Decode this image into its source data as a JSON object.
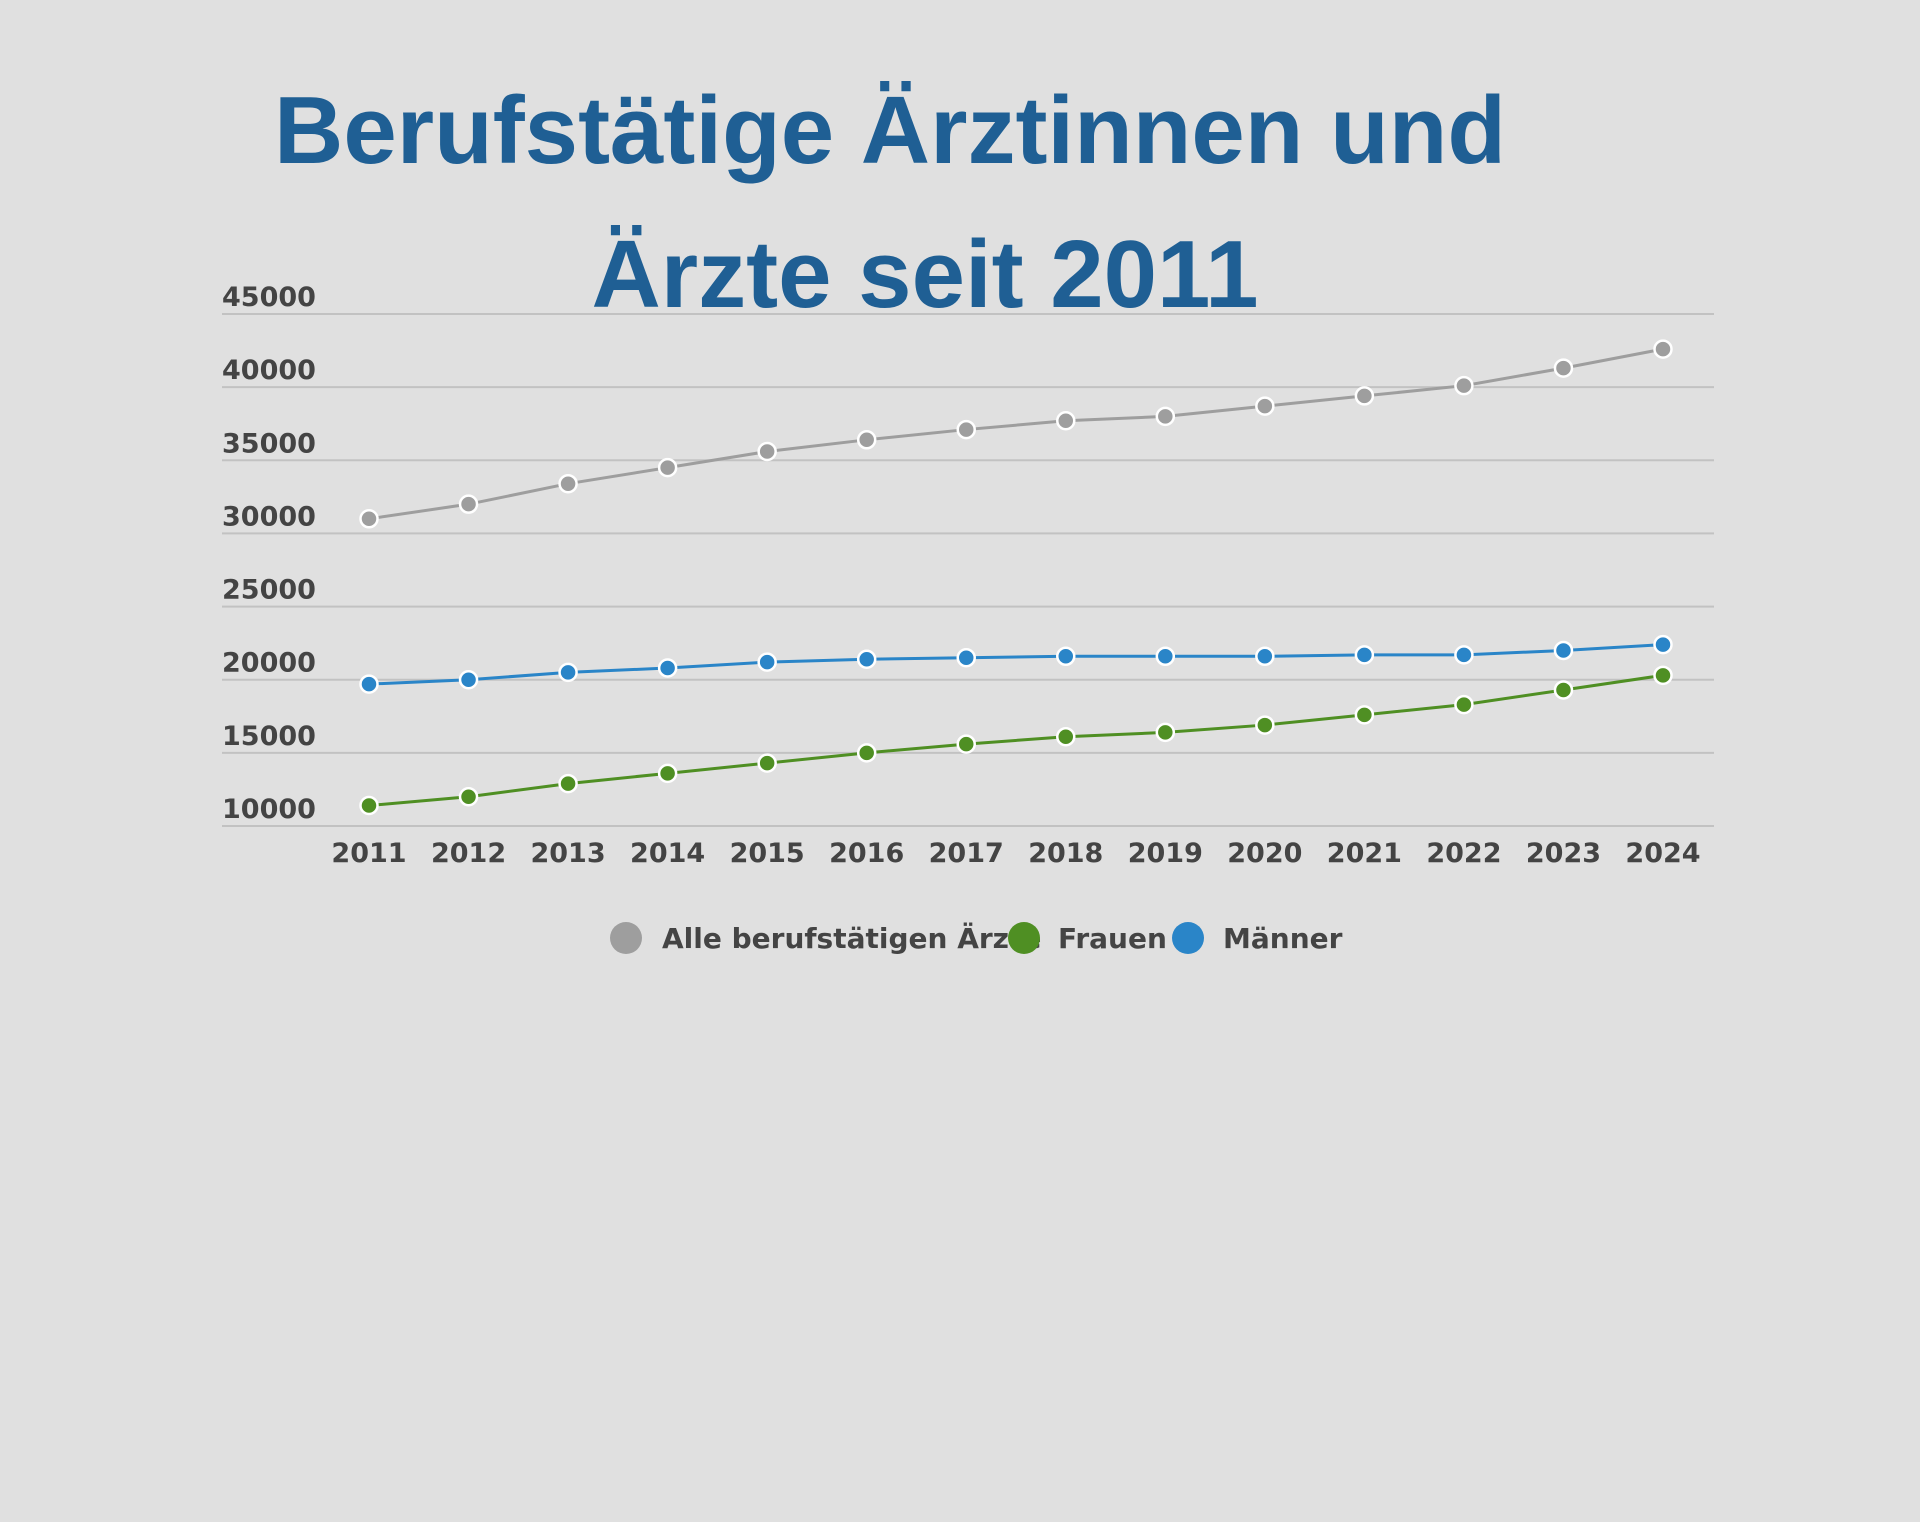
{
  "chart_data": {
    "type": "line",
    "title": "Berufstätige Ärztinnen und Ärzte seit 2011",
    "title_lines": [
      "Berufstätige Ärztinnen und",
      "Ärzte seit 2011"
    ],
    "xlabel": "",
    "ylabel": "",
    "x": [
      "2011",
      "2012",
      "2013",
      "2014",
      "2015",
      "2016",
      "2017",
      "2018",
      "2019",
      "2020",
      "2021",
      "2022",
      "2023",
      "2024"
    ],
    "ylim": [
      10000,
      45000
    ],
    "yticks": [
      "10000",
      "15000",
      "20000",
      "25000",
      "30000",
      "35000",
      "40000",
      "45000"
    ],
    "grid": true,
    "legend_position": "bottom",
    "series": [
      {
        "name": "Alle berufstätigen Ärzte",
        "color": "#9e9e9e",
        "values": [
          31000,
          32000,
          33400,
          34500,
          35600,
          36400,
          37100,
          37700,
          38000,
          38700,
          39400,
          40100,
          41300,
          42600
        ]
      },
      {
        "name": "Frauen",
        "color": "#4f8f23",
        "values": [
          11400,
          12000,
          12900,
          13600,
          14300,
          15000,
          15600,
          16100,
          16400,
          16900,
          17600,
          18300,
          19300,
          20300
        ]
      },
      {
        "name": "Männer",
        "color": "#2a85c8",
        "values": [
          19700,
          20000,
          20500,
          20800,
          21200,
          21400,
          21500,
          21600,
          21600,
          21600,
          21700,
          21700,
          22000,
          22400
        ]
      }
    ]
  }
}
